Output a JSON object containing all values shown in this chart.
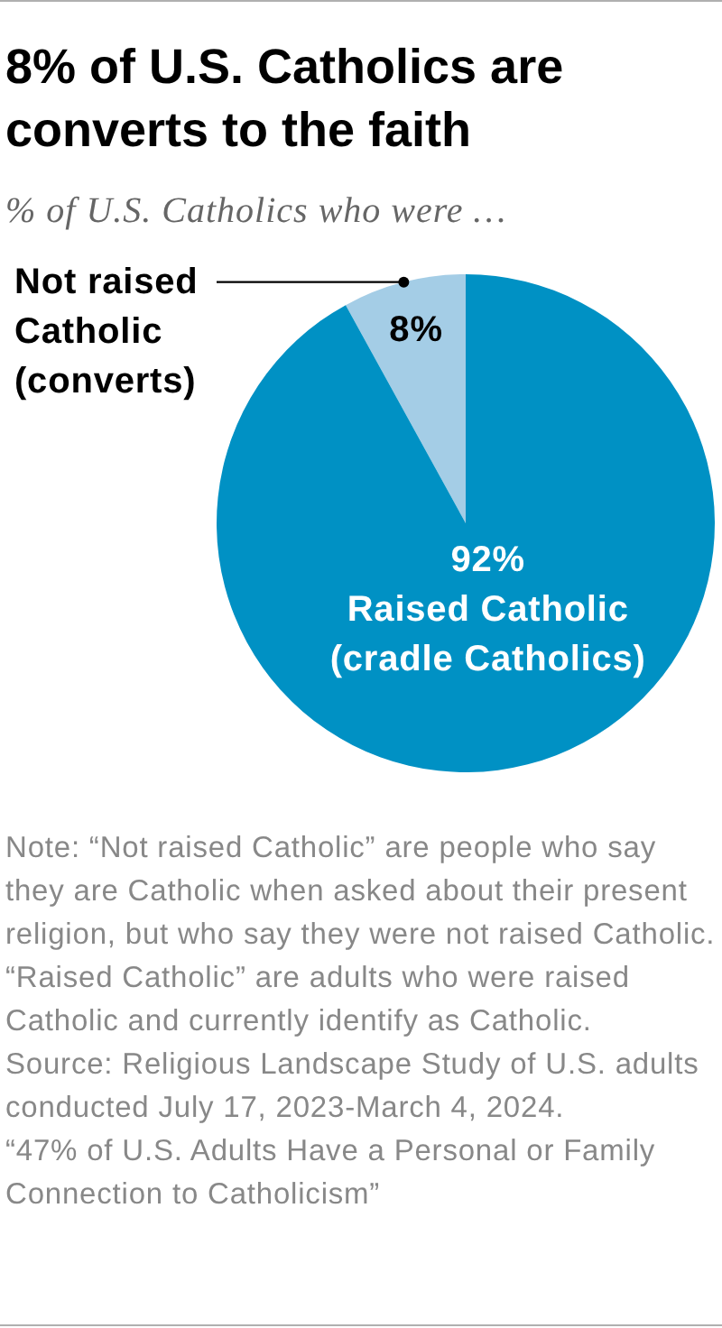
{
  "chart_data": {
    "type": "pie",
    "title": "8% of U.S. Catholics are converts to the faith",
    "subtitle": "% of U.S. Catholics who were …",
    "categories": [
      "Not raised Catholic (converts)",
      "Raised Catholic (cradle Catholics)"
    ],
    "values": [
      8,
      92
    ],
    "colors": [
      "#a4cde6",
      "#0091c4"
    ],
    "value_labels": [
      "8%",
      "92%"
    ],
    "annotations": [
      "Note: “Not raised Catholic” are people who say they are Catholic when asked about their present religion, but who say they were not raised Catholic. “Raised Catholic” are adults who were raised Catholic and currently identify as Catholic.",
      "Source: Religious Landscape Study of U.S. adults conducted July 17, 2023-March 4, 2024.",
      "“47% of U.S. Adults Have a Personal or Family Connection to Catholicism”"
    ]
  }
}
